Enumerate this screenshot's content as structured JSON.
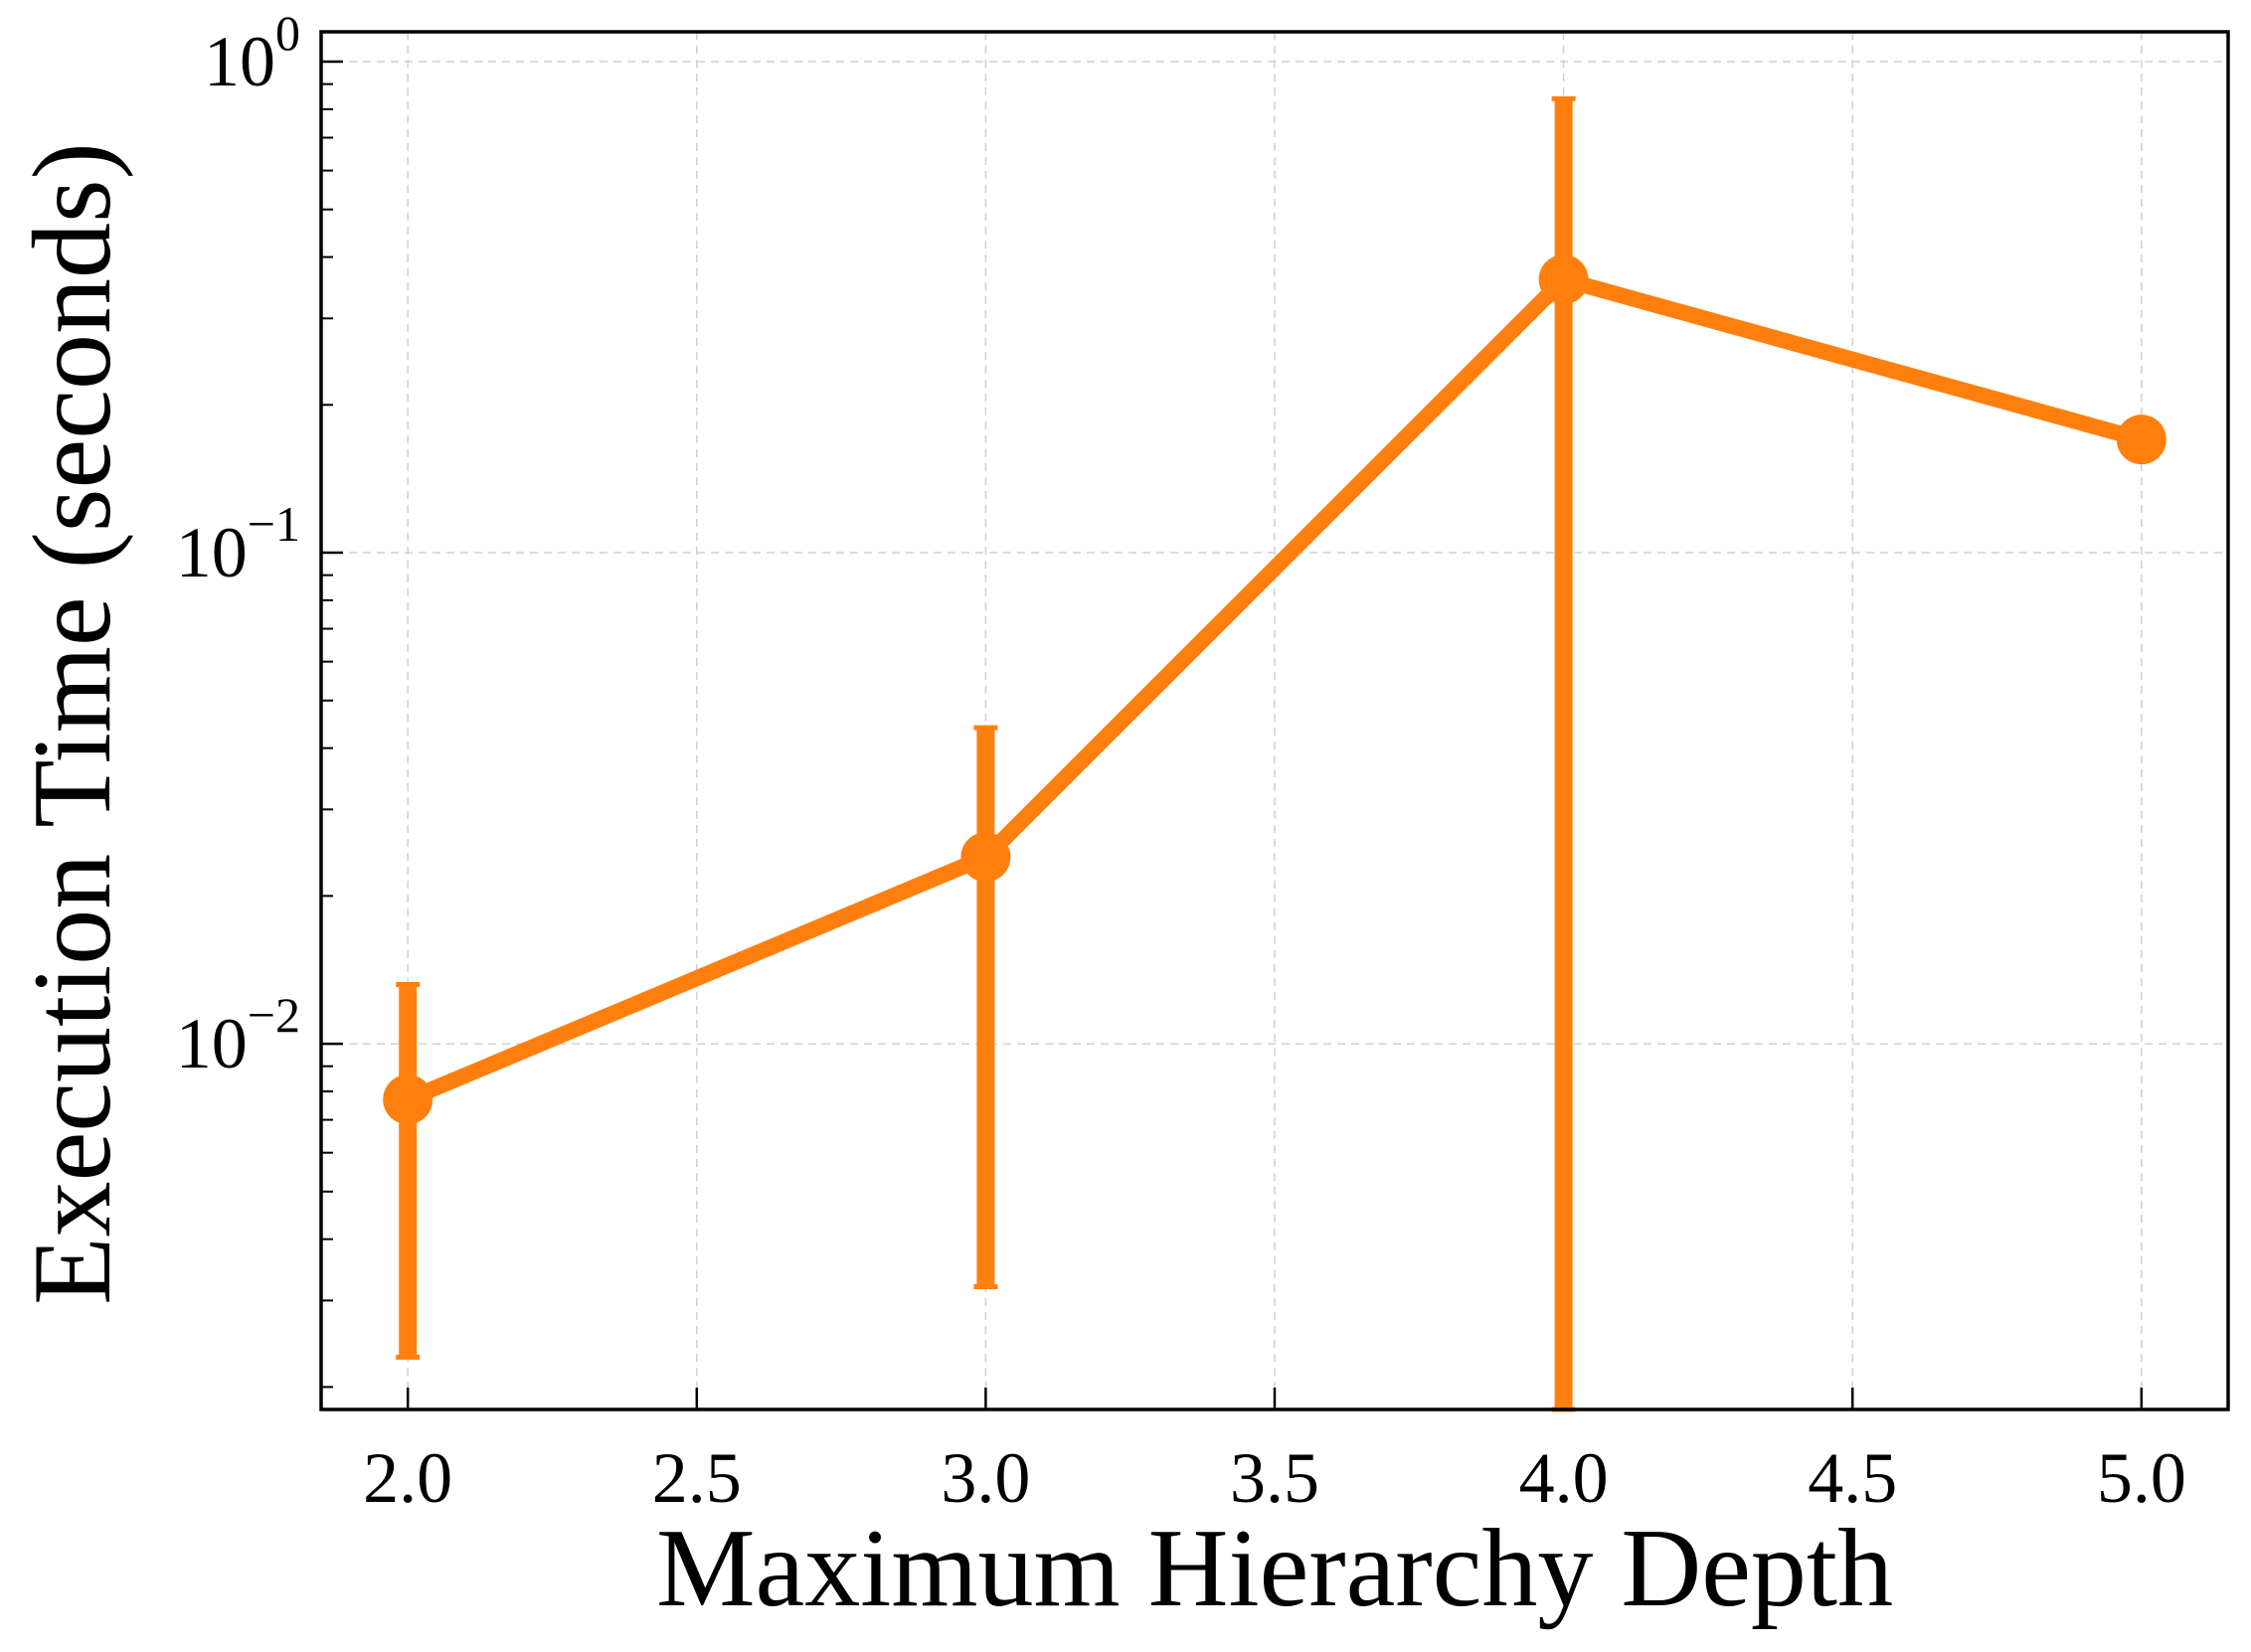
{
  "chart_data": {
    "type": "line",
    "title": "",
    "xlabel": "Maximum Hierarchy Depth",
    "ylabel": "Execution Time (seconds)",
    "x": [
      2.0,
      3.0,
      4.0,
      5.0
    ],
    "series": [
      {
        "values": [
          0.0077,
          0.024,
          0.36,
          0.17
        ],
        "error_low": [
          0.0023,
          0.0032,
          0.0018,
          0.17
        ],
        "error_high": [
          0.0132,
          0.044,
          0.84,
          0.17
        ],
        "color": "#ff7f0e"
      }
    ],
    "xlim": [
      1.85,
      5.15
    ],
    "ylim": [
      0.0018,
      1.15
    ],
    "yscale": "log",
    "x_ticks": [
      {
        "value": 2.0,
        "label": "2.0"
      },
      {
        "value": 2.5,
        "label": "2.5"
      },
      {
        "value": 3.0,
        "label": "3.0"
      },
      {
        "value": 3.5,
        "label": "3.5"
      },
      {
        "value": 4.0,
        "label": "4.0"
      },
      {
        "value": 4.5,
        "label": "4.5"
      },
      {
        "value": 5.0,
        "label": "5.0"
      }
    ],
    "y_ticks": [
      {
        "value": 0.01,
        "base": "10",
        "exp": "−2"
      },
      {
        "value": 0.1,
        "base": "10",
        "exp": "−1"
      },
      {
        "value": 1,
        "base": "10",
        "exp": "0"
      }
    ],
    "grid": true,
    "legend": "none"
  }
}
